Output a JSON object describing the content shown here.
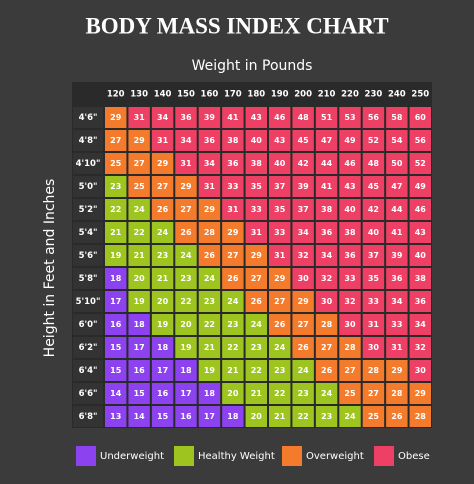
{
  "header": {
    "title": "BODY MASS INDEX CHART"
  },
  "x_label": "Weight in Pounds",
  "y_label": "Height in Feet and Inches",
  "table": {
    "columns": [
      120,
      130,
      140,
      150,
      160,
      170,
      180,
      190,
      200,
      210,
      220,
      230,
      240,
      250
    ],
    "rows": [
      {
        "label": "4'6\"",
        "values": [
          29,
          31,
          34,
          36,
          39,
          41,
          43,
          46,
          48,
          51,
          53,
          56,
          58,
          60
        ]
      },
      {
        "label": "4'8\"",
        "values": [
          27,
          29,
          31,
          34,
          36,
          38,
          40,
          43,
          45,
          47,
          49,
          52,
          54,
          56
        ]
      },
      {
        "label": "4'10\"",
        "values": [
          25,
          27,
          29,
          31,
          34,
          36,
          38,
          40,
          42,
          44,
          46,
          48,
          50,
          52
        ]
      },
      {
        "label": "5'0\"",
        "values": [
          23,
          25,
          27,
          29,
          31,
          33,
          35,
          37,
          39,
          41,
          43,
          45,
          47,
          49
        ]
      },
      {
        "label": "5'2\"",
        "values": [
          22,
          24,
          26,
          27,
          29,
          31,
          33,
          35,
          37,
          38,
          40,
          42,
          44,
          46
        ]
      },
      {
        "label": "5'4\"",
        "values": [
          21,
          22,
          24,
          26,
          28,
          29,
          31,
          33,
          34,
          36,
          38,
          40,
          41,
          43
        ]
      },
      {
        "label": "5'6\"",
        "values": [
          19,
          21,
          23,
          24,
          26,
          27,
          29,
          31,
          32,
          34,
          36,
          37,
          39,
          40
        ]
      },
      {
        "label": "5'8\"",
        "values": [
          18,
          20,
          21,
          23,
          24,
          26,
          27,
          29,
          30,
          32,
          33,
          35,
          36,
          38
        ]
      },
      {
        "label": "5'10\"",
        "values": [
          17,
          19,
          20,
          22,
          23,
          24,
          26,
          27,
          29,
          30,
          32,
          33,
          34,
          36
        ]
      },
      {
        "label": "6'0\"",
        "values": [
          16,
          18,
          19,
          20,
          22,
          23,
          24,
          26,
          27,
          28,
          30,
          31,
          33,
          34
        ]
      },
      {
        "label": "6'2\"",
        "values": [
          15,
          17,
          18,
          19,
          21,
          22,
          23,
          24,
          26,
          27,
          28,
          30,
          31,
          32
        ]
      },
      {
        "label": "6'4\"",
        "values": [
          15,
          16,
          17,
          18,
          19,
          21,
          22,
          23,
          24,
          26,
          27,
          28,
          29,
          30
        ]
      },
      {
        "label": "6'6\"",
        "values": [
          14,
          15,
          16,
          17,
          18,
          20,
          21,
          22,
          23,
          24,
          25,
          27,
          28,
          29
        ]
      },
      {
        "label": "6'8\"",
        "values": [
          13,
          14,
          15,
          16,
          17,
          18,
          20,
          21,
          22,
          23,
          24,
          25,
          26,
          28
        ]
      }
    ]
  },
  "legend": [
    {
      "label": "Underweight",
      "color": "#8c42ee",
      "from": 0
    },
    {
      "label": "Healthy Weight",
      "color": "#9dc41f",
      "from": 19
    },
    {
      "label": "Overweight",
      "color": "#f47b2b",
      "from": 25
    },
    {
      "label": "Obese",
      "color": "#ee3f64",
      "from": 30
    }
  ]
}
